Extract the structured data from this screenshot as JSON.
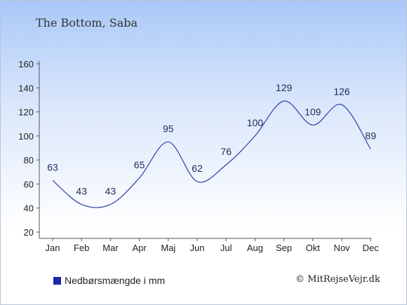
{
  "title": "The Bottom, Saba",
  "legend_label": "Nedbørsmængde i mm",
  "copyright": "© MitRejseVejr.dk",
  "colors": {
    "line": "#2a3fa8",
    "legend": "#1a2aa8",
    "axis": "#555555"
  },
  "chart_data": {
    "type": "line",
    "categories": [
      "Jan",
      "Feb",
      "Mar",
      "Apr",
      "Maj",
      "Jun",
      "Jul",
      "Aug",
      "Sep",
      "Okt",
      "Nov",
      "Dec"
    ],
    "series": [
      {
        "name": "Nedbørsmængde i mm",
        "values": [
          63,
          43,
          43,
          65,
          95,
          62,
          76,
          100,
          129,
          109,
          126,
          89
        ]
      }
    ],
    "yticks": [
      20,
      40,
      60,
      80,
      100,
      120,
      140,
      160
    ],
    "ylim": [
      20,
      160
    ],
    "legend": "bottom-left",
    "grid": false
  }
}
